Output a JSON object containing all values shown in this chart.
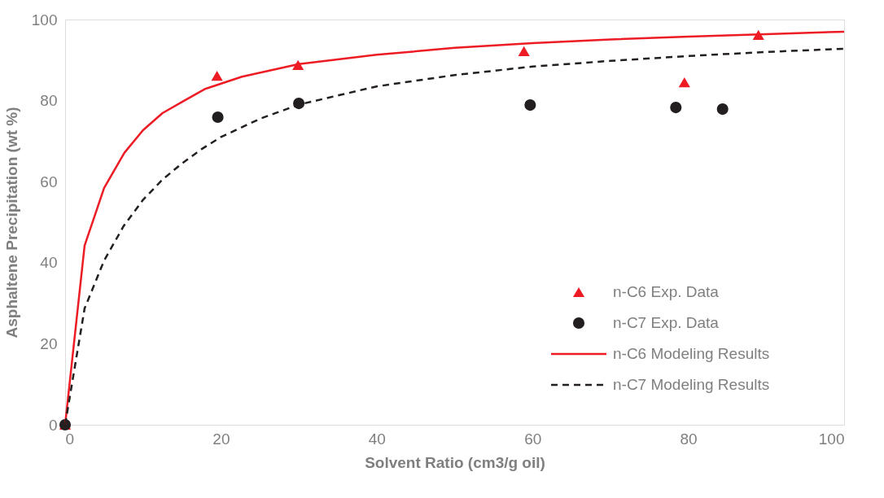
{
  "chart_data": {
    "type": "scatter",
    "xlabel": "Solvent Ratio (cm3/g oil)",
    "ylabel": "Asphaltene Precipitation (wt %)",
    "xlim": [
      0,
      100
    ],
    "xticks": [
      0,
      20,
      40,
      60,
      80,
      100
    ],
    "ylim": [
      0,
      100
    ],
    "yticks": [
      0,
      20,
      40,
      60,
      80,
      100
    ],
    "grid": false,
    "legend": "bottom right",
    "series": [
      {
        "name": "n-C6 Exp. Data",
        "marker": "triangle",
        "color": "#ed1c24",
        "x": [
          0,
          19.5,
          29.9,
          58.9,
          79.5,
          89.0
        ],
        "values": [
          0,
          86.1,
          88.8,
          92.2,
          84.5,
          96.2
        ]
      },
      {
        "name": "n-C7 Exp. Data",
        "marker": "circle",
        "color": "#231f20",
        "x": [
          0,
          19.6,
          30.0,
          59.7,
          78.4,
          84.4
        ],
        "values": [
          0,
          75.9,
          79.3,
          78.9,
          78.3,
          77.9
        ]
      },
      {
        "name": "n-C6 Modeling Results",
        "type": "line",
        "line_style": "solid",
        "marker": "none",
        "color": "#ed1c24",
        "x": [
          0,
          2.5,
          5.0,
          7.6,
          10.0,
          12.5,
          15.4,
          18.0,
          22.7,
          30,
          40,
          50,
          60,
          70,
          80,
          90,
          100
        ],
        "values": [
          0,
          44.2,
          58.4,
          67.1,
          72.7,
          76.9,
          80.1,
          82.9,
          85.9,
          89.0,
          91.3,
          93.0,
          94.2,
          95.1,
          95.8,
          96.4,
          97.0
        ]
      },
      {
        "name": "n-C7 Modeling Results",
        "type": "line",
        "line_style": "dashed",
        "marker": "none",
        "color": "#231f20",
        "x": [
          0,
          2.5,
          5,
          7.5,
          10,
          12.5,
          15,
          17.5,
          20,
          25,
          30,
          40,
          50,
          60,
          70,
          80,
          90,
          100
        ],
        "values": [
          0,
          28.7,
          40.5,
          49,
          55.5,
          60.5,
          64.5,
          68,
          71,
          75.5,
          79,
          83.5,
          86.3,
          88.4,
          89.8,
          91,
          92,
          92.8
        ]
      }
    ]
  }
}
